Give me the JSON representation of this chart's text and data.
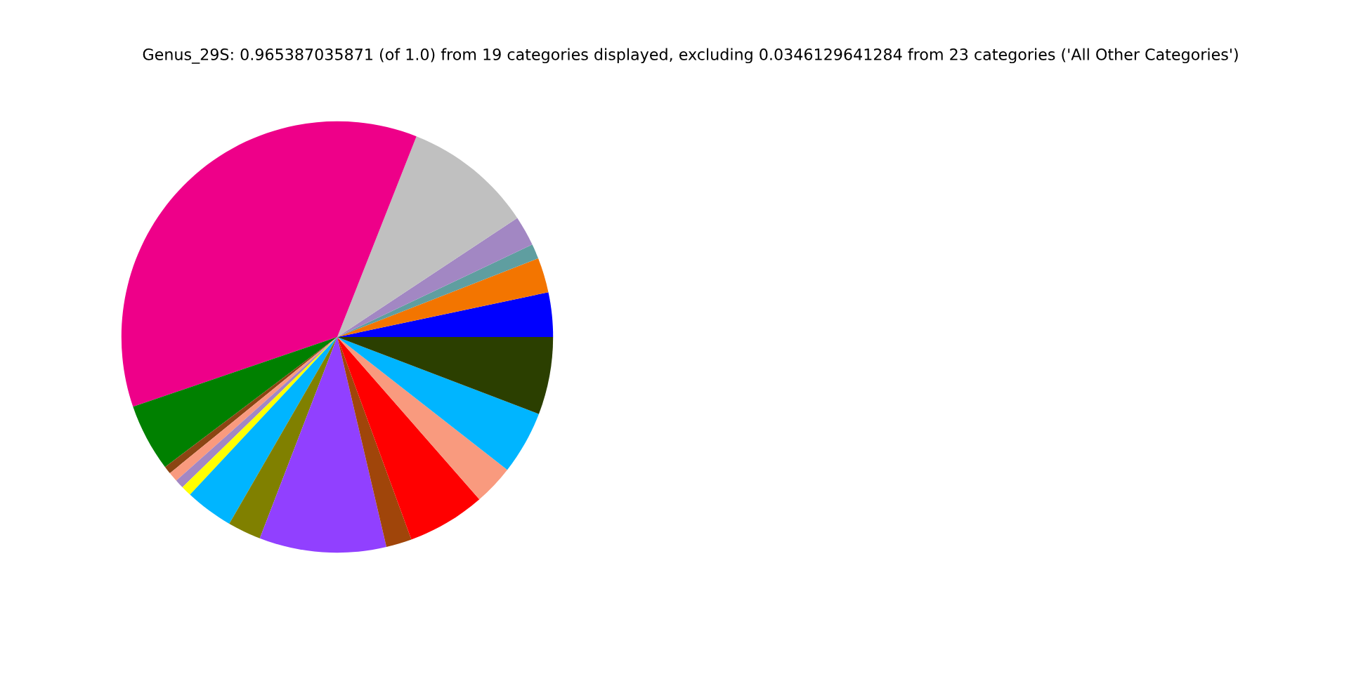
{
  "chart_data": {
    "type": "pie",
    "title": "Genus_29S: 0.965387035871 (of 1.0) from 19 categories displayed, excluding 0.0346129641284 from 23 categories ('All Other Categories')",
    "categories": [
      null,
      null,
      null,
      null,
      null,
      null,
      null,
      null,
      null,
      null,
      null,
      null,
      null,
      null,
      null,
      null,
      null,
      null,
      null
    ],
    "values": [
      3.33,
      2.61,
      1.11,
      2.25,
      9.72,
      36.22,
      5.06,
      0.58,
      0.72,
      0.67,
      0.78,
      3.61,
      2.5,
      9.5,
      1.92,
      5.86,
      3.0,
      4.75,
      5.81
    ],
    "colors": [
      "#0000ff",
      "#f37500",
      "#5f9ea0",
      "#a287c3",
      "#c0c0c0",
      "#ee0089",
      "#008000",
      "#8b4513",
      "#f99a7e",
      "#a287c3",
      "#ffff00",
      "#00b5ff",
      "#808000",
      "#9140ff",
      "#a0450a",
      "#ff0000",
      "#f99a7e",
      "#00b5ff",
      "#2b3f00"
    ]
  }
}
